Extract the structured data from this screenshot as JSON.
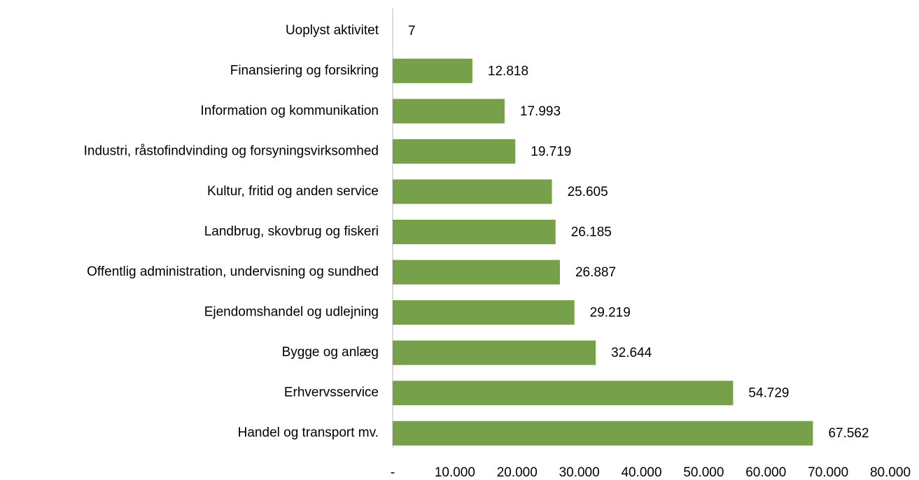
{
  "chart_data": {
    "type": "bar",
    "orientation": "horizontal",
    "categories": [
      "Uoplyst aktivitet",
      "Finansiering og forsikring",
      "Information og kommunikation",
      "Industri, råstofindvinding og forsyningsvirksomhed",
      "Kultur, fritid og anden service",
      "Landbrug, skovbrug og fiskeri",
      "Offentlig administration, undervisning og sundhed",
      "Ejendomshandel og udlejning",
      "Bygge og anlæg",
      "Erhvervsservice",
      "Handel og transport mv."
    ],
    "values": [
      7,
      12818,
      17993,
      19719,
      25605,
      26185,
      26887,
      29219,
      32644,
      54729,
      67562
    ],
    "value_labels": [
      "7",
      "12.818",
      "17.993",
      "19.719",
      "25.605",
      "26.185",
      "26.887",
      "29.219",
      "32.644",
      "54.729",
      "67.562"
    ],
    "color": "#77a04a",
    "xlim": [
      0,
      80000
    ],
    "xticks": [
      {
        "value": 0,
        "label": "-"
      },
      {
        "value": 10000,
        "label": "10.000"
      },
      {
        "value": 20000,
        "label": "20.000"
      },
      {
        "value": 30000,
        "label": "30.000"
      },
      {
        "value": 40000,
        "label": "40.000"
      },
      {
        "value": 50000,
        "label": "50.000"
      },
      {
        "value": 60000,
        "label": "60.000"
      },
      {
        "value": 70000,
        "label": "70.000"
      },
      {
        "value": 80000,
        "label": "80.000"
      }
    ],
    "grid": false
  }
}
